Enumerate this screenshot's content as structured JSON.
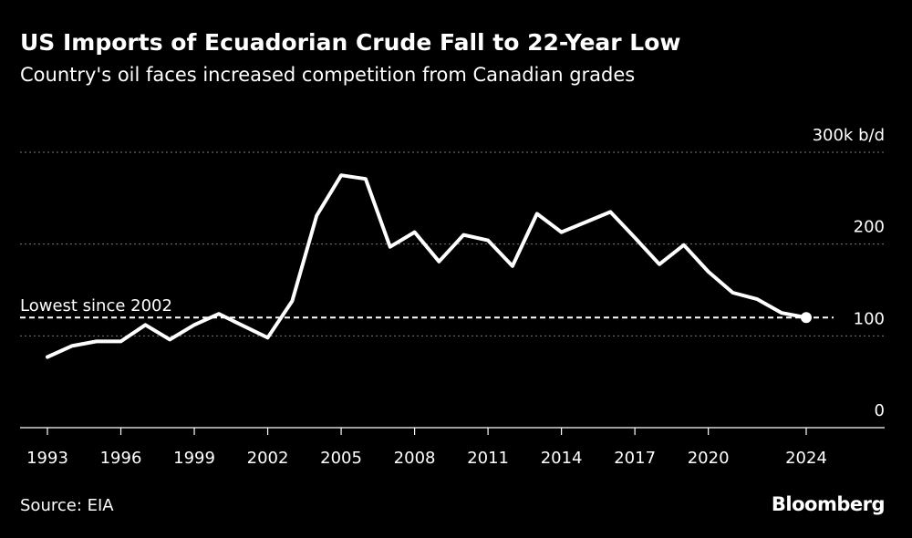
{
  "header": {
    "title": "US Imports of Ecuadorian Crude Fall to 22-Year Low",
    "subtitle": "Country's oil faces increased competition from Canadian grades"
  },
  "footer": {
    "source": "Source: EIA",
    "brand": "Bloomberg"
  },
  "colors": {
    "background": "#000000",
    "line": "#ffffff",
    "gridline": "#7a7a7a",
    "text": "#ffffff"
  },
  "chart_data": {
    "type": "line",
    "title": "US Imports of Ecuadorian Crude Fall to 22-Year Low",
    "subtitle": "Country's oil faces increased competition from Canadian grades",
    "xlabel": "",
    "ylabel": "",
    "y_unit": "k b/d",
    "xlim": [
      1993,
      2024
    ],
    "ylim": [
      0,
      300
    ],
    "grid": true,
    "legend": "none",
    "x_ticks": [
      1993,
      1996,
      1999,
      2002,
      2005,
      2008,
      2011,
      2014,
      2017,
      2020,
      2024
    ],
    "y_ticks": [
      {
        "value": 0,
        "label": "0"
      },
      {
        "value": 100,
        "label": "100"
      },
      {
        "value": 200,
        "label": "200"
      },
      {
        "value": 300,
        "label": "300k b/d"
      }
    ],
    "series": [
      {
        "x": [
          1993,
          1994,
          1995,
          1996,
          1997,
          1998,
          1999,
          2000,
          2001,
          2002,
          2003,
          2004,
          2005,
          2006,
          2007,
          2008,
          2009,
          2010,
          2011,
          2012,
          2013,
          2014,
          2015,
          2016,
          2017,
          2018,
          2019,
          2020,
          2021,
          2022,
          2023,
          2024
        ],
        "values": [
          77,
          89,
          94,
          94,
          112,
          96,
          112,
          124,
          111,
          98,
          138,
          231,
          275,
          271,
          197,
          213,
          181,
          210,
          204,
          176,
          233,
          213,
          224,
          235,
          207,
          178,
          199,
          170,
          147,
          140,
          125,
          120
        ]
      }
    ],
    "reference_line": {
      "value": 120,
      "label": "Lowest since 2002"
    },
    "highlight_point": {
      "x": 2024,
      "value": 120
    }
  }
}
